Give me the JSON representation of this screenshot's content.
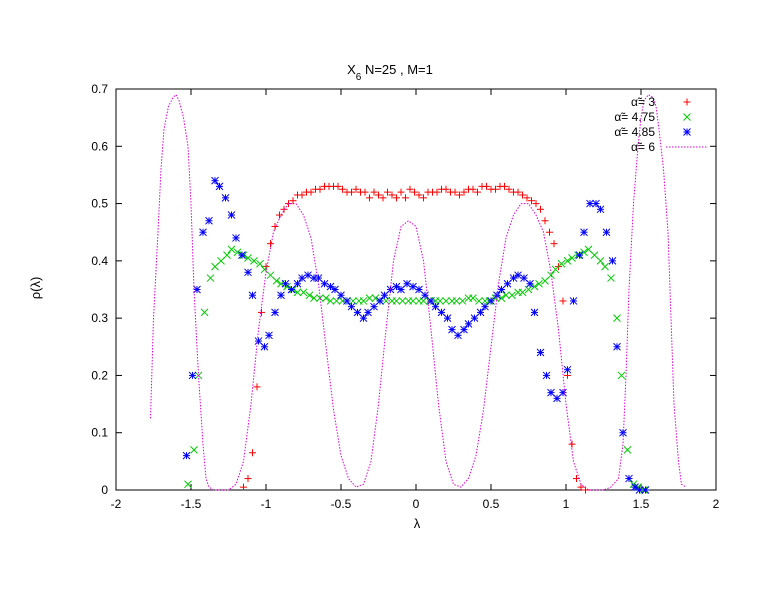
{
  "chart_data": {
    "type": "scatter",
    "title": "X6  N=25 , M=1",
    "title_main": "X",
    "title_sub": "6",
    "title_rest": "  N=25 , M=1",
    "xlabel": "λ",
    "ylabel": "ρ(λ)",
    "xlim": [
      -2,
      2
    ],
    "ylim": [
      0,
      0.7
    ],
    "xticks": [
      -2,
      -1.5,
      -1,
      -0.5,
      0,
      0.5,
      1,
      1.5,
      2
    ],
    "xtick_labels": [
      "-2",
      "-1.5",
      "-1",
      "-0.5",
      "0",
      "0.5",
      "1",
      "1.5",
      "2"
    ],
    "yticks": [
      0,
      0.1,
      0.2,
      0.3,
      0.4,
      0.5,
      0.6,
      0.7
    ],
    "ytick_labels": [
      "0",
      "0.1",
      "0.2",
      "0.3",
      "0.4",
      "0.5",
      "0.6",
      "0.7"
    ],
    "grid": false,
    "legend_position": "top-right",
    "series": [
      {
        "name": "α̃= 3",
        "marker": "plus",
        "color": "#ff0000",
        "x": [
          -1.15,
          -1.12,
          -1.09,
          -1.06,
          -1.03,
          -1.0,
          -0.97,
          -0.94,
          -0.91,
          -0.88,
          -0.85,
          -0.82,
          -0.79,
          -0.76,
          -0.73,
          -0.7,
          -0.67,
          -0.64,
          -0.61,
          -0.58,
          -0.55,
          -0.52,
          -0.49,
          -0.46,
          -0.43,
          -0.4,
          -0.37,
          -0.34,
          -0.31,
          -0.28,
          -0.25,
          -0.22,
          -0.19,
          -0.16,
          -0.13,
          -0.1,
          -0.07,
          -0.04,
          -0.01,
          0.02,
          0.05,
          0.08,
          0.11,
          0.14,
          0.17,
          0.2,
          0.23,
          0.26,
          0.29,
          0.32,
          0.35,
          0.38,
          0.41,
          0.44,
          0.47,
          0.5,
          0.53,
          0.56,
          0.59,
          0.62,
          0.65,
          0.68,
          0.71,
          0.74,
          0.77,
          0.8,
          0.83,
          0.86,
          0.89,
          0.92,
          0.95,
          0.98,
          1.01,
          1.04,
          1.07,
          1.1,
          1.13
        ],
        "y": [
          0.005,
          0.02,
          0.065,
          0.18,
          0.31,
          0.39,
          0.43,
          0.46,
          0.48,
          0.49,
          0.5,
          0.505,
          0.515,
          0.515,
          0.52,
          0.52,
          0.525,
          0.525,
          0.53,
          0.53,
          0.53,
          0.53,
          0.525,
          0.52,
          0.52,
          0.525,
          0.52,
          0.52,
          0.51,
          0.52,
          0.515,
          0.51,
          0.52,
          0.515,
          0.51,
          0.52,
          0.51,
          0.525,
          0.52,
          0.515,
          0.51,
          0.52,
          0.52,
          0.52,
          0.525,
          0.525,
          0.52,
          0.52,
          0.515,
          0.52,
          0.525,
          0.525,
          0.52,
          0.53,
          0.53,
          0.525,
          0.525,
          0.53,
          0.53,
          0.525,
          0.52,
          0.52,
          0.515,
          0.51,
          0.505,
          0.5,
          0.49,
          0.47,
          0.45,
          0.43,
          0.39,
          0.33,
          0.2,
          0.08,
          0.02,
          0.005,
          0.0
        ]
      },
      {
        "name": "α̃= 4.75",
        "marker": "cross",
        "color": "#00cc00",
        "x": [
          -1.52,
          -1.48,
          -1.45,
          -1.41,
          -1.37,
          -1.34,
          -1.3,
          -1.26,
          -1.23,
          -1.19,
          -1.15,
          -1.12,
          -1.08,
          -1.04,
          -1.01,
          -0.97,
          -0.93,
          -0.9,
          -0.86,
          -0.82,
          -0.79,
          -0.75,
          -0.71,
          -0.68,
          -0.64,
          -0.6,
          -0.57,
          -0.53,
          -0.49,
          -0.46,
          -0.42,
          -0.38,
          -0.35,
          -0.31,
          -0.27,
          -0.24,
          -0.2,
          -0.16,
          -0.13,
          -0.09,
          -0.05,
          -0.02,
          0.02,
          0.05,
          0.09,
          0.13,
          0.16,
          0.2,
          0.24,
          0.27,
          0.31,
          0.35,
          0.38,
          0.42,
          0.46,
          0.49,
          0.53,
          0.57,
          0.6,
          0.64,
          0.68,
          0.71,
          0.75,
          0.79,
          0.82,
          0.86,
          0.9,
          0.93,
          0.97,
          1.01,
          1.04,
          1.08,
          1.12,
          1.15,
          1.19,
          1.23,
          1.26,
          1.3,
          1.34,
          1.37,
          1.41,
          1.45,
          1.48,
          1.52
        ],
        "y": [
          0.01,
          0.07,
          0.2,
          0.31,
          0.37,
          0.39,
          0.4,
          0.41,
          0.42,
          0.415,
          0.41,
          0.405,
          0.4,
          0.395,
          0.385,
          0.375,
          0.365,
          0.36,
          0.355,
          0.35,
          0.345,
          0.345,
          0.34,
          0.335,
          0.335,
          0.335,
          0.33,
          0.33,
          0.33,
          0.33,
          0.33,
          0.33,
          0.33,
          0.335,
          0.335,
          0.33,
          0.33,
          0.33,
          0.33,
          0.33,
          0.33,
          0.33,
          0.33,
          0.33,
          0.33,
          0.33,
          0.33,
          0.33,
          0.33,
          0.33,
          0.33,
          0.335,
          0.335,
          0.33,
          0.33,
          0.33,
          0.335,
          0.335,
          0.34,
          0.34,
          0.345,
          0.345,
          0.35,
          0.355,
          0.36,
          0.365,
          0.375,
          0.385,
          0.395,
          0.4,
          0.405,
          0.41,
          0.415,
          0.42,
          0.41,
          0.4,
          0.39,
          0.37,
          0.3,
          0.2,
          0.07,
          0.01,
          0.005,
          0.0
        ]
      },
      {
        "name": "α̃= 4.85",
        "marker": "star",
        "color": "#0000ff",
        "x": [
          -1.53,
          -1.49,
          -1.46,
          -1.42,
          -1.38,
          -1.34,
          -1.31,
          -1.27,
          -1.23,
          -1.2,
          -1.16,
          -1.12,
          -1.09,
          -1.05,
          -1.01,
          -0.98,
          -0.94,
          -0.9,
          -0.87,
          -0.83,
          -0.79,
          -0.76,
          -0.72,
          -0.68,
          -0.65,
          -0.61,
          -0.57,
          -0.54,
          -0.5,
          -0.46,
          -0.43,
          -0.39,
          -0.35,
          -0.32,
          -0.28,
          -0.24,
          -0.21,
          -0.17,
          -0.13,
          -0.1,
          -0.06,
          -0.02,
          0.02,
          0.06,
          0.1,
          0.13,
          0.17,
          0.21,
          0.24,
          0.28,
          0.32,
          0.35,
          0.39,
          0.43,
          0.46,
          0.5,
          0.54,
          0.57,
          0.61,
          0.65,
          0.68,
          0.72,
          0.76,
          0.79,
          0.83,
          0.87,
          0.9,
          0.94,
          0.98,
          1.01,
          1.05,
          1.09,
          1.12,
          1.16,
          1.2,
          1.23,
          1.27,
          1.31,
          1.34,
          1.38,
          1.42,
          1.46,
          1.49,
          1.53
        ],
        "y": [
          0.06,
          0.2,
          0.35,
          0.45,
          0.47,
          0.54,
          0.53,
          0.51,
          0.48,
          0.44,
          0.41,
          0.38,
          0.34,
          0.26,
          0.25,
          0.27,
          0.31,
          0.34,
          0.36,
          0.35,
          0.36,
          0.37,
          0.375,
          0.37,
          0.37,
          0.36,
          0.355,
          0.35,
          0.34,
          0.33,
          0.32,
          0.31,
          0.3,
          0.31,
          0.32,
          0.33,
          0.34,
          0.35,
          0.355,
          0.35,
          0.36,
          0.355,
          0.35,
          0.34,
          0.33,
          0.32,
          0.31,
          0.3,
          0.28,
          0.27,
          0.28,
          0.29,
          0.3,
          0.31,
          0.32,
          0.33,
          0.34,
          0.35,
          0.36,
          0.37,
          0.375,
          0.37,
          0.36,
          0.31,
          0.24,
          0.2,
          0.17,
          0.16,
          0.17,
          0.21,
          0.33,
          0.41,
          0.45,
          0.5,
          0.5,
          0.49,
          0.45,
          0.4,
          0.25,
          0.1,
          0.02,
          0.005,
          0.0,
          0.0
        ]
      },
      {
        "name": "α̃= 6",
        "marker": "line",
        "color": "#dd00dd",
        "x": [
          -1.77,
          -1.75,
          -1.72,
          -1.7,
          -1.68,
          -1.65,
          -1.62,
          -1.6,
          -1.58,
          -1.55,
          -1.52,
          -1.5,
          -1.48,
          -1.45,
          -1.42,
          -1.4,
          -1.38,
          -1.35,
          -1.3,
          -1.25,
          -1.2,
          -1.15,
          -1.1,
          -1.05,
          -1.0,
          -0.95,
          -0.9,
          -0.85,
          -0.8,
          -0.75,
          -0.7,
          -0.65,
          -0.6,
          -0.55,
          -0.5,
          -0.45,
          -0.4,
          -0.35,
          -0.3,
          -0.25,
          -0.2,
          -0.15,
          -0.1,
          -0.05,
          0.0,
          0.05,
          0.1,
          0.15,
          0.2,
          0.25,
          0.3,
          0.35,
          0.4,
          0.45,
          0.5,
          0.55,
          0.6,
          0.65,
          0.7,
          0.75,
          0.8,
          0.85,
          0.9,
          0.95,
          1.0,
          1.05,
          1.1,
          1.15,
          1.2,
          1.25,
          1.3,
          1.35,
          1.38,
          1.4,
          1.42,
          1.45,
          1.48,
          1.5,
          1.52,
          1.55,
          1.58,
          1.6,
          1.62,
          1.65,
          1.68,
          1.7,
          1.72,
          1.75,
          1.77,
          1.8
        ],
        "y": [
          0.125,
          0.3,
          0.45,
          0.56,
          0.63,
          0.67,
          0.685,
          0.69,
          0.68,
          0.65,
          0.6,
          0.5,
          0.35,
          0.2,
          0.08,
          0.02,
          0.005,
          0.0,
          0.0,
          0.0,
          0.01,
          0.05,
          0.15,
          0.28,
          0.38,
          0.45,
          0.48,
          0.5,
          0.5,
          0.48,
          0.44,
          0.36,
          0.25,
          0.14,
          0.06,
          0.02,
          0.005,
          0.01,
          0.05,
          0.15,
          0.28,
          0.4,
          0.46,
          0.47,
          0.46,
          0.4,
          0.28,
          0.15,
          0.05,
          0.01,
          0.005,
          0.02,
          0.06,
          0.14,
          0.25,
          0.36,
          0.44,
          0.48,
          0.5,
          0.5,
          0.48,
          0.45,
          0.38,
          0.28,
          0.15,
          0.05,
          0.01,
          0.0,
          0.0,
          0.0,
          0.005,
          0.02,
          0.08,
          0.2,
          0.35,
          0.5,
          0.6,
          0.65,
          0.68,
          0.69,
          0.685,
          0.67,
          0.63,
          0.56,
          0.45,
          0.3,
          0.15,
          0.05,
          0.01,
          0.005
        ]
      }
    ]
  }
}
